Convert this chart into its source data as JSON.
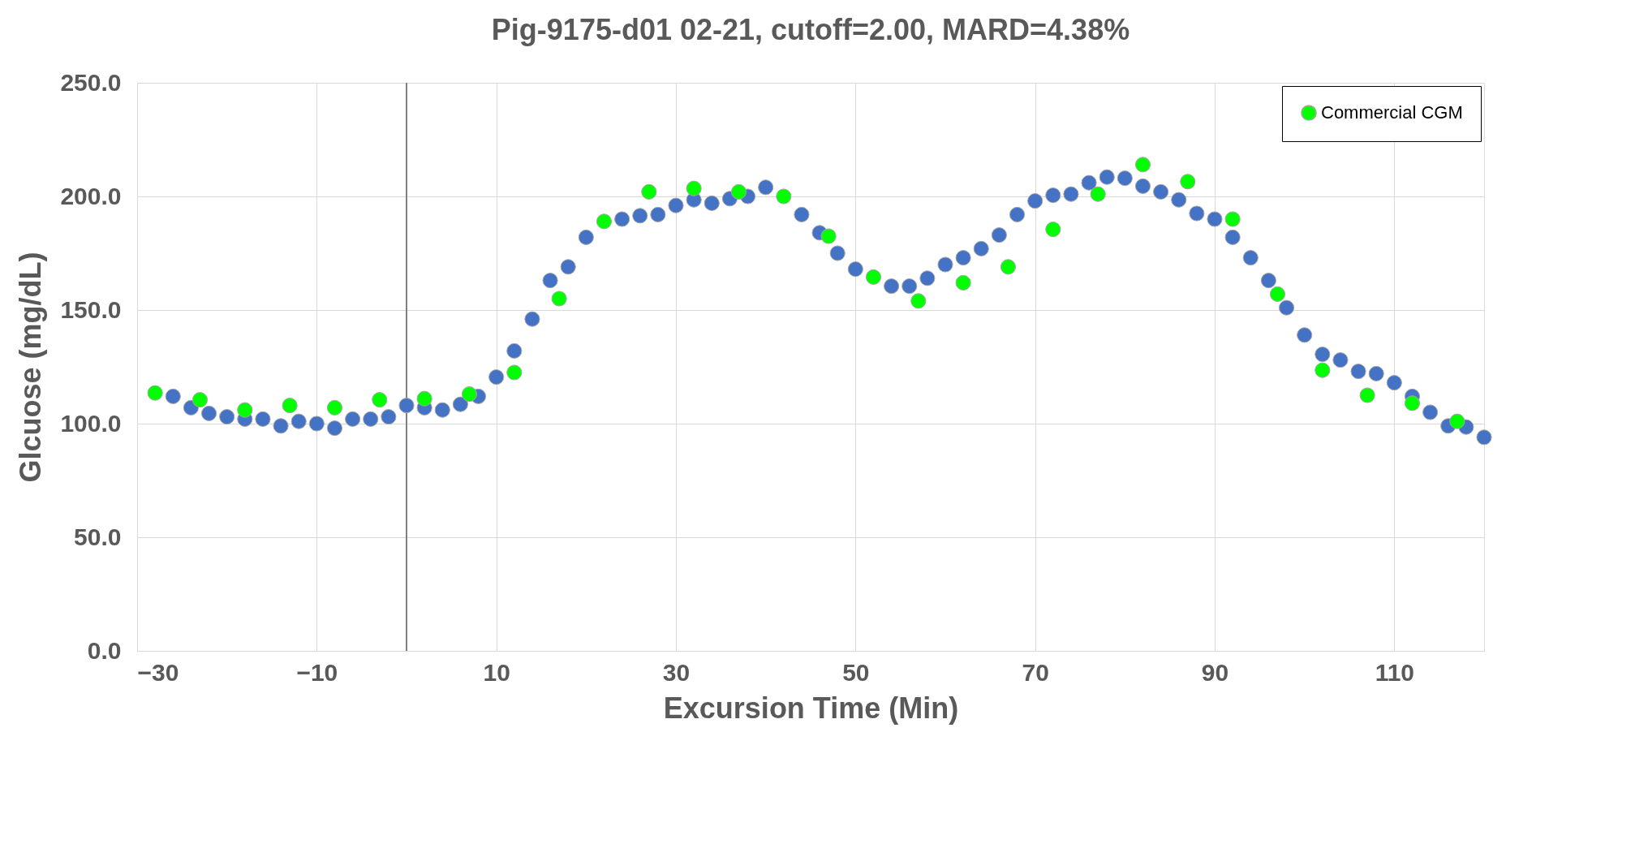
{
  "chart_data": {
    "type": "scatter",
    "title": "Pig-9175-d01 02-21, cutoff=2.00, MARD=4.38%",
    "xlabel": "Excursion Time (Min)",
    "ylabel": "Glcuose (mg/dL)",
    "xlim": [
      -30,
      120
    ],
    "xticks": [
      -30,
      -10,
      10,
      30,
      50,
      70,
      90,
      110
    ],
    "ylim": [
      0,
      250
    ],
    "yticks": [
      {
        "value": 0,
        "label": "0.0"
      },
      {
        "value": 50,
        "label": "50.0"
      },
      {
        "value": 100,
        "label": "100.0"
      },
      {
        "value": 150,
        "label": "150.0"
      },
      {
        "value": 200,
        "label": "200.0"
      },
      {
        "value": 250,
        "label": "250.0"
      }
    ],
    "grid": true,
    "legend": "top right",
    "marker": "circle",
    "ref_lines": [
      {
        "axis": "x",
        "value": 0,
        "color": "#808080"
      }
    ],
    "series": [
      {
        "color": "#4472c4",
        "x": [
          -26,
          -24,
          -22,
          -20,
          -18,
          -16,
          -14,
          -12,
          -10,
          -8,
          -6,
          -4,
          -2,
          0,
          2,
          4,
          6,
          8,
          10,
          12,
          14,
          16,
          18,
          20,
          24,
          26,
          28,
          30,
          32,
          34,
          36,
          38,
          40,
          44,
          46,
          48,
          50,
          52,
          54,
          56,
          58,
          60,
          62,
          64,
          66,
          68,
          70,
          72,
          74,
          76,
          78,
          80,
          82,
          84,
          86,
          88,
          90,
          92,
          94,
          96,
          98,
          100,
          102,
          104,
          106,
          108,
          110,
          112,
          114,
          116,
          118,
          120
        ],
        "values": [
          112,
          107,
          104.5,
          103,
          102,
          102,
          99,
          101,
          100,
          98,
          102,
          102,
          103,
          108,
          107,
          106,
          108.5,
          112,
          120.5,
          132,
          146,
          163,
          169,
          182,
          190,
          191.5,
          192,
          196,
          198.5,
          197,
          199,
          200,
          204,
          192,
          184,
          175,
          168,
          null,
          160.5,
          160.5,
          164,
          170,
          173,
          177,
          183,
          192,
          198,
          200.5,
          201,
          206,
          208.5,
          208,
          204.5,
          202,
          198.5,
          192.5,
          190,
          182,
          173,
          163,
          151,
          139,
          130.5,
          128,
          123,
          122,
          118,
          112,
          105,
          99,
          98.5,
          94
        ]
      },
      {
        "name": "Commercial CGM",
        "color": "#00ff00",
        "x": [
          -28,
          -23,
          -18,
          -13,
          -8,
          -3,
          2,
          7,
          12,
          17,
          22,
          27,
          32,
          37,
          42,
          47,
          52,
          57,
          62,
          67,
          72,
          77,
          82,
          87,
          92,
          97,
          102,
          107,
          112,
          117
        ],
        "values": [
          113.5,
          110.5,
          106,
          108,
          107,
          110.5,
          111,
          113,
          122.5,
          155,
          189,
          202,
          203.5,
          202,
          200,
          182.5,
          164.5,
          154,
          162,
          169,
          185.5,
          201,
          214,
          206.5,
          190,
          157,
          123.5,
          112.5,
          109,
          101
        ]
      }
    ]
  }
}
